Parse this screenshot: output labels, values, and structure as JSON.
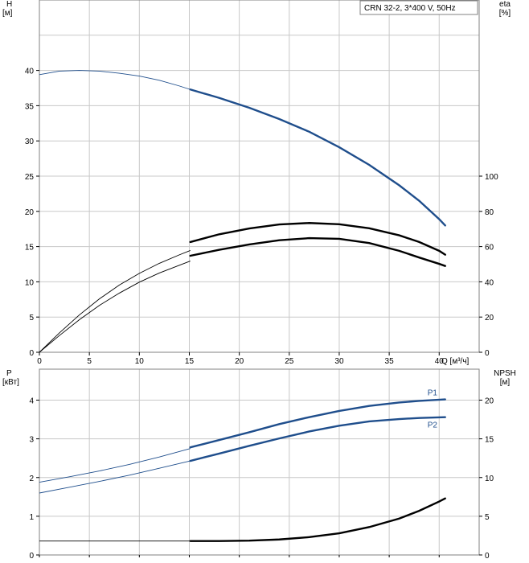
{
  "chart_data": [
    {
      "type": "line",
      "legend_box": "CRN 32-2, 3*400 V, 50Hz",
      "left_axis_label": [
        "H",
        "[м]"
      ],
      "right_axis_label": [
        "eta",
        "[%]"
      ],
      "x_axis_label": "Q [м³/ч]",
      "xlim": [
        0,
        44
      ],
      "x_ticks": [
        0,
        5,
        10,
        15,
        20,
        25,
        30,
        35,
        40
      ],
      "left_ylim": [
        0,
        50
      ],
      "left_ticks": [
        0,
        5,
        10,
        15,
        20,
        25,
        30,
        35,
        40
      ],
      "right_ylim": [
        0,
        200
      ],
      "right_ticks": [
        0,
        20,
        40,
        60,
        80,
        100
      ],
      "grid": true,
      "series": [
        {
          "color": "#1f4e8c",
          "axis": "left",
          "thin_points": [
            [
              0,
              39.4
            ],
            [
              2,
              39.9
            ],
            [
              4,
              40.0
            ],
            [
              6,
              39.9
            ],
            [
              8,
              39.6
            ],
            [
              10,
              39.2
            ],
            [
              12,
              38.6
            ],
            [
              14,
              37.8
            ],
            [
              15.1,
              37.3
            ]
          ],
          "thick_points": [
            [
              15.1,
              37.3
            ],
            [
              18,
              36.1
            ],
            [
              21,
              34.7
            ],
            [
              24,
              33.1
            ],
            [
              27,
              31.3
            ],
            [
              30,
              29.1
            ],
            [
              33,
              26.6
            ],
            [
              36,
              23.7
            ],
            [
              38,
              21.5
            ],
            [
              40,
              18.9
            ],
            [
              40.6,
              18.0
            ]
          ]
        },
        {
          "color": "#000000",
          "axis": "right",
          "thin_points": [
            [
              0,
              0
            ],
            [
              2,
              9.5
            ],
            [
              4,
              18.5
            ],
            [
              6,
              26.6
            ],
            [
              8,
              33.6
            ],
            [
              10,
              39.8
            ],
            [
              12,
              45.0
            ],
            [
              14,
              49.4
            ],
            [
              15.1,
              51.8
            ]
          ],
          "thick_points": [
            [
              15.1,
              54.8
            ],
            [
              18,
              58.2
            ],
            [
              21,
              61.2
            ],
            [
              24,
              63.6
            ],
            [
              27,
              64.8
            ],
            [
              30,
              64.4
            ],
            [
              33,
              62.0
            ],
            [
              36,
              57.6
            ],
            [
              38,
              53.8
            ],
            [
              40,
              50.2
            ],
            [
              40.6,
              49.0
            ]
          ]
        },
        {
          "color": "#000000",
          "axis": "right",
          "thin_points": [
            [
              0,
              0
            ],
            [
              2,
              11.0
            ],
            [
              4,
              21.2
            ],
            [
              6,
              30.3
            ],
            [
              8,
              38.2
            ],
            [
              10,
              44.8
            ],
            [
              12,
              50.5
            ],
            [
              14,
              55.3
            ],
            [
              15.1,
              57.8
            ]
          ],
          "thick_points": [
            [
              15.1,
              62.6
            ],
            [
              18,
              67.0
            ],
            [
              21,
              70.3
            ],
            [
              24,
              72.6
            ],
            [
              27,
              73.4
            ],
            [
              30,
              72.7
            ],
            [
              33,
              70.4
            ],
            [
              36,
              66.4
            ],
            [
              38,
              62.6
            ],
            [
              40,
              57.6
            ],
            [
              40.6,
              55.4
            ]
          ]
        }
      ]
    },
    {
      "type": "line",
      "left_axis_label": [
        "P",
        "[кВт]"
      ],
      "right_axis_label": [
        "NPSH",
        "[м]"
      ],
      "xlim": [
        0,
        44
      ],
      "left_ylim": [
        0,
        4.8
      ],
      "left_ticks": [
        0,
        1,
        2,
        3,
        4
      ],
      "right_ylim": [
        0,
        24
      ],
      "right_ticks": [
        0,
        5,
        10,
        15,
        20
      ],
      "grid": true,
      "series": [
        {
          "name": "P1",
          "color": "#1f4e8c",
          "axis": "left",
          "thin_points": [
            [
              0,
              1.88
            ],
            [
              3,
              2.02
            ],
            [
              6,
              2.17
            ],
            [
              9,
              2.34
            ],
            [
              12,
              2.53
            ],
            [
              15.1,
              2.75
            ]
          ],
          "thick_points": [
            [
              15.1,
              2.78
            ],
            [
              18,
              2.97
            ],
            [
              21,
              3.17
            ],
            [
              24,
              3.38
            ],
            [
              27,
              3.56
            ],
            [
              30,
              3.72
            ],
            [
              33,
              3.85
            ],
            [
              36,
              3.94
            ],
            [
              38,
              3.98
            ],
            [
              40.6,
              4.02
            ]
          ]
        },
        {
          "name": "P2",
          "color": "#1f4e8c",
          "axis": "left",
          "thin_points": [
            [
              0,
              1.6
            ],
            [
              3,
              1.75
            ],
            [
              6,
              1.9
            ],
            [
              9,
              2.06
            ],
            [
              12,
              2.24
            ],
            [
              15.1,
              2.43
            ]
          ],
          "thick_points": [
            [
              15.1,
              2.43
            ],
            [
              18,
              2.62
            ],
            [
              21,
              2.82
            ],
            [
              24,
              3.01
            ],
            [
              27,
              3.19
            ],
            [
              30,
              3.34
            ],
            [
              33,
              3.45
            ],
            [
              36,
              3.51
            ],
            [
              38,
              3.54
            ],
            [
              40.6,
              3.56
            ]
          ]
        },
        {
          "color": "#000000",
          "axis": "right",
          "thin_points": [
            [
              0,
              1.8
            ],
            [
              5,
              1.8
            ],
            [
              10,
              1.8
            ],
            [
              15.1,
              1.8
            ]
          ],
          "thick_points": [
            [
              15.1,
              1.8
            ],
            [
              18,
              1.8
            ],
            [
              21,
              1.85
            ],
            [
              24,
              2.0
            ],
            [
              27,
              2.3
            ],
            [
              30,
              2.8
            ],
            [
              33,
              3.6
            ],
            [
              36,
              4.7
            ],
            [
              38,
              5.7
            ],
            [
              40,
              6.9
            ],
            [
              40.6,
              7.3
            ]
          ]
        }
      ]
    }
  ]
}
